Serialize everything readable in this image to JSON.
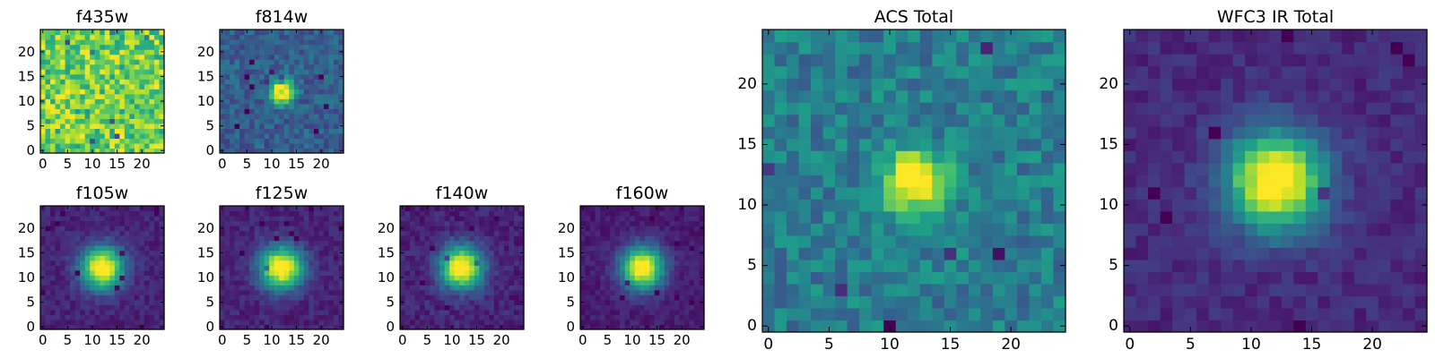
{
  "chart_data": [
    {
      "id": "f435w",
      "type": "heatmap",
      "title": "f435w",
      "xticks": [
        0,
        5,
        10,
        15,
        20
      ],
      "yticks": [
        0,
        5,
        10,
        15,
        20
      ],
      "xlim": [
        -0.5,
        24.5
      ],
      "ylim": [
        -0.5,
        24.5
      ],
      "colormap": "viridis",
      "grid_size": 25,
      "source_center": null,
      "background": 0.78,
      "noise": 0.22,
      "source_peak": 0,
      "source_sigma": 0,
      "seed": 11
    },
    {
      "id": "f814w",
      "type": "heatmap",
      "title": "f814w",
      "xticks": [
        0,
        5,
        10,
        15,
        20
      ],
      "yticks": [
        0,
        5,
        10,
        15,
        20
      ],
      "xlim": [
        -0.5,
        24.5
      ],
      "ylim": [
        -0.5,
        24.5
      ],
      "colormap": "viridis",
      "grid_size": 25,
      "source_center": [
        12,
        12
      ],
      "background": 0.3,
      "noise": 0.12,
      "source_peak": 0.95,
      "source_sigma": 1.6,
      "seed": 23
    },
    {
      "id": "f105w",
      "type": "heatmap",
      "title": "f105w",
      "xticks": [
        0,
        5,
        10,
        15,
        20
      ],
      "yticks": [
        0,
        5,
        10,
        15,
        20
      ],
      "xlim": [
        -0.5,
        24.5
      ],
      "ylim": [
        -0.5,
        24.5
      ],
      "colormap": "viridis",
      "grid_size": 25,
      "source_center": [
        12,
        12
      ],
      "background": 0.1,
      "noise": 0.06,
      "source_peak": 1.0,
      "source_sigma": 3.0,
      "seed": 37
    },
    {
      "id": "f125w",
      "type": "heatmap",
      "title": "f125w",
      "xticks": [
        0,
        5,
        10,
        15,
        20
      ],
      "yticks": [
        0,
        5,
        10,
        15,
        20
      ],
      "xlim": [
        -0.5,
        24.5
      ],
      "ylim": [
        -0.5,
        24.5
      ],
      "colormap": "viridis",
      "grid_size": 25,
      "source_center": [
        12,
        12
      ],
      "background": 0.1,
      "noise": 0.06,
      "source_peak": 1.0,
      "source_sigma": 3.0,
      "seed": 41
    },
    {
      "id": "f140w",
      "type": "heatmap",
      "title": "f140w",
      "xticks": [
        0,
        5,
        10,
        15,
        20
      ],
      "yticks": [
        0,
        5,
        10,
        15,
        20
      ],
      "xlim": [
        -0.5,
        24.5
      ],
      "ylim": [
        -0.5,
        24.5
      ],
      "colormap": "viridis",
      "grid_size": 25,
      "source_center": [
        12,
        12
      ],
      "background": 0.1,
      "noise": 0.07,
      "source_peak": 1.0,
      "source_sigma": 3.0,
      "seed": 53
    },
    {
      "id": "f160w",
      "type": "heatmap",
      "title": "f160w",
      "xticks": [
        0,
        5,
        10,
        15,
        20
      ],
      "yticks": [
        0,
        5,
        10,
        15,
        20
      ],
      "xlim": [
        -0.5,
        24.5
      ],
      "ylim": [
        -0.5,
        24.5
      ],
      "colormap": "viridis",
      "grid_size": 25,
      "source_center": [
        12,
        12
      ],
      "background": 0.08,
      "noise": 0.05,
      "source_peak": 1.0,
      "source_sigma": 3.0,
      "seed": 67
    },
    {
      "id": "acs-total",
      "type": "heatmap",
      "title": "ACS Total",
      "xticks": [
        0,
        5,
        10,
        15,
        20
      ],
      "yticks": [
        0,
        5,
        10,
        15,
        20
      ],
      "xlim": [
        -0.5,
        24.5
      ],
      "ylim": [
        -0.5,
        24.5
      ],
      "colormap": "viridis",
      "grid_size": 25,
      "source_center": [
        12,
        12
      ],
      "background": 0.42,
      "noise": 0.14,
      "source_peak": 0.75,
      "source_sigma": 1.8,
      "seed": 79
    },
    {
      "id": "wfc3-ir-total",
      "type": "heatmap",
      "title": "WFC3 IR Total",
      "xticks": [
        0,
        5,
        10,
        15,
        20
      ],
      "yticks": [
        0,
        5,
        10,
        15,
        20
      ],
      "xlim": [
        -0.5,
        24.5
      ],
      "ylim": [
        -0.5,
        24.5
      ],
      "colormap": "viridis",
      "grid_size": 25,
      "source_center": [
        12,
        12
      ],
      "background": 0.12,
      "noise": 0.06,
      "source_peak": 1.0,
      "source_sigma": 2.8,
      "seed": 97
    }
  ]
}
